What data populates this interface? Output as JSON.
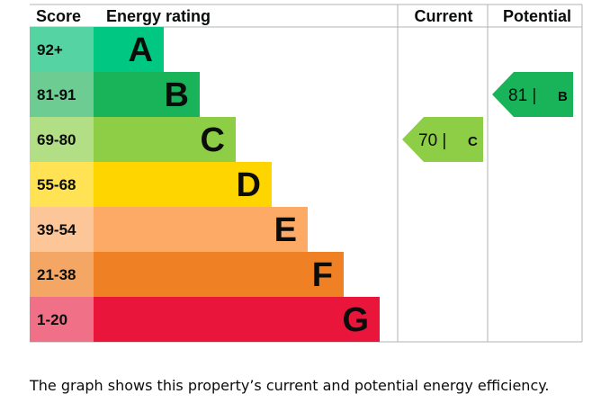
{
  "chart_data": {
    "type": "bar",
    "headers": {
      "score": "Score",
      "rating": "Energy rating",
      "current": "Current",
      "potential": "Potential"
    },
    "bands": [
      {
        "score": "92+",
        "letter": "A",
        "color": "#00c781",
        "score_bg": "#55d3a2"
      },
      {
        "score": "81-91",
        "letter": "B",
        "color": "#19b459",
        "score_bg": "#6ccc91"
      },
      {
        "score": "69-80",
        "letter": "C",
        "color": "#8dce46",
        "score_bg": "#b2de85"
      },
      {
        "score": "55-68",
        "letter": "D",
        "color": "#ffd500",
        "score_bg": "#ffe354"
      },
      {
        "score": "39-54",
        "letter": "E",
        "color": "#fcaa65",
        "score_bg": "#fdc699"
      },
      {
        "score": "21-38",
        "letter": "F",
        "color": "#ef8023",
        "score_bg": "#f4a765"
      },
      {
        "score": "1-20",
        "letter": "G",
        "color": "#e9153b",
        "score_bg": "#f07088"
      }
    ],
    "current": {
      "value": 70,
      "letter": "C",
      "label": "70 |",
      "color": "#8dce46"
    },
    "potential": {
      "value": 81,
      "letter": "B",
      "label": "81 |",
      "color": "#19b459"
    }
  },
  "caption": "The graph shows this property’s current and potential energy efficiency."
}
